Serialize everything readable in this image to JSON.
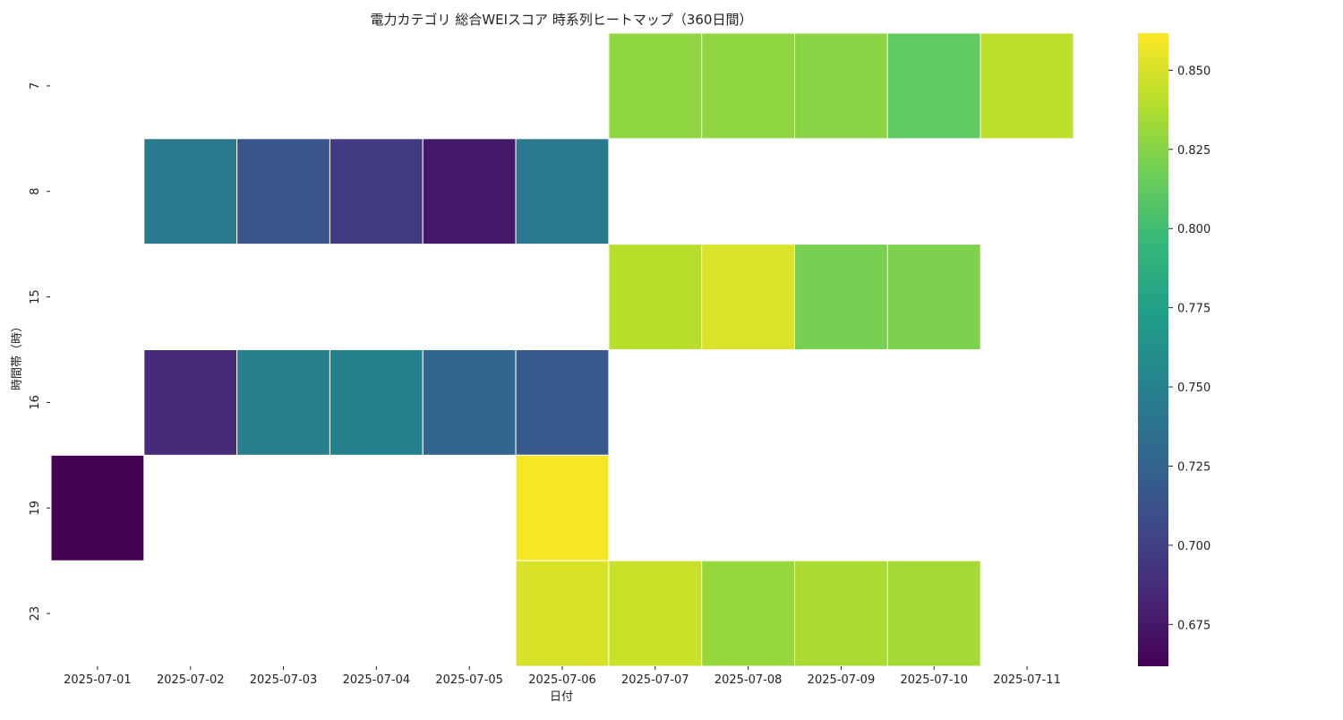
{
  "chart_data": {
    "type": "heatmap",
    "title": "電力カテゴリ 総合WEIスコア 時系列ヒートマップ（360日間）",
    "xlabel": "日付",
    "ylabel": "時間帯（時）",
    "x": [
      "2025-07-01",
      "2025-07-02",
      "2025-07-03",
      "2025-07-04",
      "2025-07-05",
      "2025-07-06",
      "2025-07-07",
      "2025-07-08",
      "2025-07-09",
      "2025-07-10",
      "2025-07-11"
    ],
    "y": [
      "7",
      "8",
      "15",
      "16",
      "19",
      "23"
    ],
    "values": [
      [
        null,
        null,
        null,
        null,
        null,
        null,
        0.828,
        0.828,
        0.826,
        0.812,
        0.842
      ],
      [
        null,
        0.742,
        0.715,
        0.697,
        0.675,
        0.743,
        null,
        null,
        null,
        null,
        null
      ],
      [
        null,
        null,
        null,
        null,
        null,
        null,
        0.84,
        0.851,
        0.82,
        0.822,
        null
      ],
      [
        null,
        0.686,
        0.748,
        0.75,
        0.728,
        0.718,
        null,
        null,
        null,
        null,
        null
      ],
      [
        0.662,
        null,
        null,
        null,
        null,
        0.86,
        null,
        null,
        null,
        null,
        null
      ],
      [
        null,
        null,
        null,
        null,
        null,
        0.85,
        0.846,
        0.83,
        0.836,
        0.834,
        null
      ]
    ],
    "colorscale": "viridis",
    "colorbar": {
      "range": [
        0.6618,
        0.8617
      ],
      "ticks": [
        0.675,
        0.7,
        0.725,
        0.75,
        0.775,
        0.8,
        0.825,
        0.85
      ],
      "tick_labels": [
        "0.675",
        "0.700",
        "0.725",
        "0.750",
        "0.775",
        "0.800",
        "0.825",
        "0.850"
      ]
    },
    "grid": false,
    "colors": {
      "missing": "#ffffff",
      "cell_border": "#ffffff"
    }
  }
}
